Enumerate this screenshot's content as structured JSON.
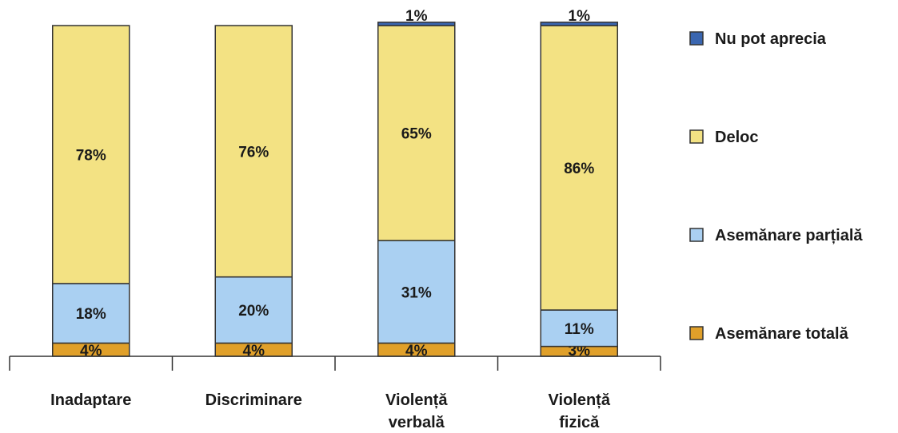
{
  "chart_data": {
    "type": "bar",
    "stacked": true,
    "categories": [
      "Inadaptare",
      "Discriminare",
      "Violență verbală",
      "Violență fizică"
    ],
    "category_lines": [
      [
        "Inadaptare"
      ],
      [
        "Discriminare"
      ],
      [
        "Violență",
        "verbală"
      ],
      [
        "Violență",
        "fizică"
      ]
    ],
    "series": [
      {
        "name": "Asemănare totală",
        "color": "#E0A02A",
        "values": [
          4,
          4,
          4,
          3
        ],
        "labels": [
          "4%",
          "4%",
          "4%",
          "3%"
        ]
      },
      {
        "name": "Asemănare parțială",
        "color": "#AAD0F2",
        "values": [
          18,
          20,
          31,
          11
        ],
        "labels": [
          "18%",
          "20%",
          "31%",
          "11%"
        ]
      },
      {
        "name": "Deloc",
        "color": "#F3E283",
        "values": [
          78,
          76,
          65,
          86
        ],
        "labels": [
          "78%",
          "76%",
          "65%",
          "86%"
        ]
      },
      {
        "name": "Nu pot aprecia",
        "color": "#3A66B0",
        "values": [
          0,
          0,
          1,
          1
        ],
        "labels": [
          "",
          "",
          "1%",
          "1%"
        ]
      }
    ],
    "legend_order": [
      "Nu pot aprecia",
      "Deloc",
      "Asemănare parțială",
      "Asemănare totală"
    ],
    "legend_position": "right",
    "ylim": [
      0,
      100
    ],
    "grid": false,
    "title": "",
    "xlabel": "",
    "ylabel": ""
  }
}
